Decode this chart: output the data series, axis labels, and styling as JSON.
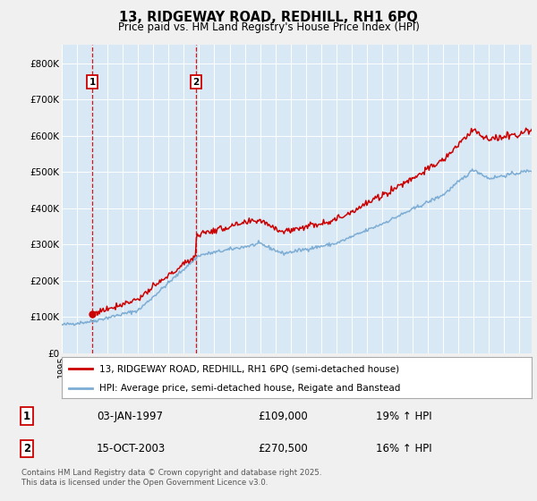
{
  "title": "13, RIDGEWAY ROAD, REDHILL, RH1 6PQ",
  "subtitle": "Price paid vs. HM Land Registry's House Price Index (HPI)",
  "legend_line1": "13, RIDGEWAY ROAD, REDHILL, RH1 6PQ (semi-detached house)",
  "legend_line2": "HPI: Average price, semi-detached house, Reigate and Banstead",
  "annotation1_date": "03-JAN-1997",
  "annotation1_price": "£109,000",
  "annotation1_hpi": "19% ↑ HPI",
  "annotation2_date": "15-OCT-2003",
  "annotation2_price": "£270,500",
  "annotation2_hpi": "16% ↑ HPI",
  "copyright": "Contains HM Land Registry data © Crown copyright and database right 2025.\nThis data is licensed under the Open Government Licence v3.0.",
  "sale1_year": 1997.0,
  "sale1_price": 109000,
  "sale2_year": 2003.79,
  "sale2_price": 270500,
  "bg_color": "#f0f0f0",
  "plot_bg_color": "#d8e8f4",
  "red_line_color": "#cc0000",
  "blue_line_color": "#7dadd4",
  "grid_color": "#ffffff",
  "ylim": [
    0,
    850000
  ],
  "xlim_start": 1995.0,
  "xlim_end": 2025.8
}
